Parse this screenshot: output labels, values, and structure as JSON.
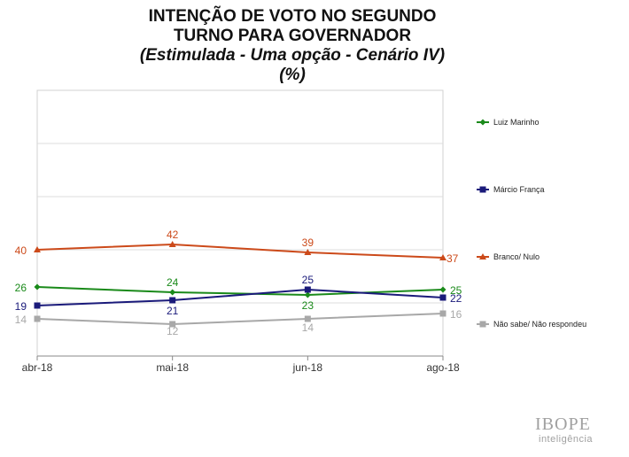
{
  "chart_data": {
    "type": "line",
    "title_lines": [
      "INTENÇÃO DE VOTO NO SEGUNDO",
      "TURNO PARA GOVERNADOR",
      "(Estimulada - Uma opção - Cenário IV)",
      "(%)"
    ],
    "categories": [
      "abr-18",
      "mai-18",
      "jun-18",
      "ago-18"
    ],
    "ylim": [
      0,
      100
    ],
    "grid": true,
    "legend_position": "right",
    "series": [
      {
        "name": "Luiz Marinho",
        "values": [
          26,
          24,
          23,
          25
        ],
        "labels": [
          "26",
          "24",
          "23",
          "25"
        ],
        "color": "#1a8a1a",
        "marker": "diamond"
      },
      {
        "name": "Márcio França",
        "values": [
          19,
          21,
          25,
          22
        ],
        "labels": [
          "19",
          "21",
          "25",
          "22"
        ],
        "color": "#1a1a7a",
        "marker": "square"
      },
      {
        "name": "Branco/ Nulo",
        "values": [
          40,
          42,
          39,
          37
        ],
        "labels": [
          "40",
          "42",
          "39",
          "37"
        ],
        "color": "#cc4a1a",
        "marker": "triangle"
      },
      {
        "name": "Não sabe/ Não respondeu",
        "values": [
          14,
          12,
          14,
          16
        ],
        "labels": [
          "14",
          "12",
          "14",
          "16"
        ],
        "color": "#a8a8a8",
        "marker": "square"
      }
    ]
  },
  "brand": {
    "name": "IBOPE",
    "subtitle": "inteligência"
  }
}
